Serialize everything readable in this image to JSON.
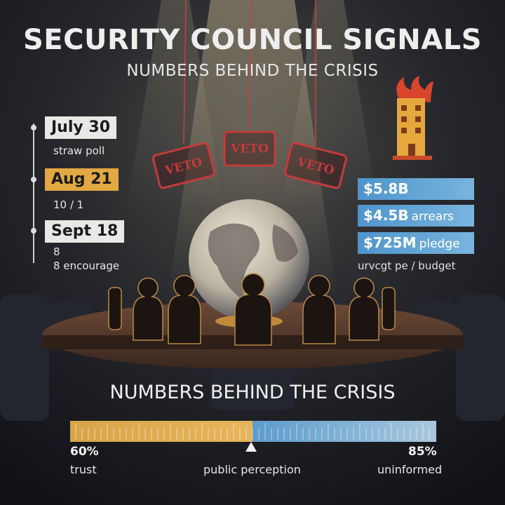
{
  "header": {
    "title": "SECURITY COUNCIL SIGNALS",
    "subtitle": "NUMBERS BEHIND THE CRISIS"
  },
  "timeline": [
    {
      "date": "July 30",
      "lines": [
        "straw poll"
      ]
    },
    {
      "date": "Aug 21",
      "lines": [
        "10 / 1"
      ]
    },
    {
      "date": "Sept 18",
      "lines": [
        "8",
        "8 encourage"
      ]
    }
  ],
  "veto_tags": [
    "VETO",
    "VETO",
    "VETO"
  ],
  "finance": {
    "items": [
      {
        "amount": "$5.8B"
      },
      {
        "amount": "$4.5B",
        "label": "arrears"
      },
      {
        "amount": "$725M",
        "label": "pledge"
      }
    ],
    "caption": "urvcgt pe / budget"
  },
  "perception": {
    "heading": "NUMBERS BEHIND THE CRISIS",
    "left": {
      "value": "60%",
      "label": "trust"
    },
    "center": "public perception",
    "right": {
      "value": "85%",
      "label": "uninformed"
    }
  }
}
